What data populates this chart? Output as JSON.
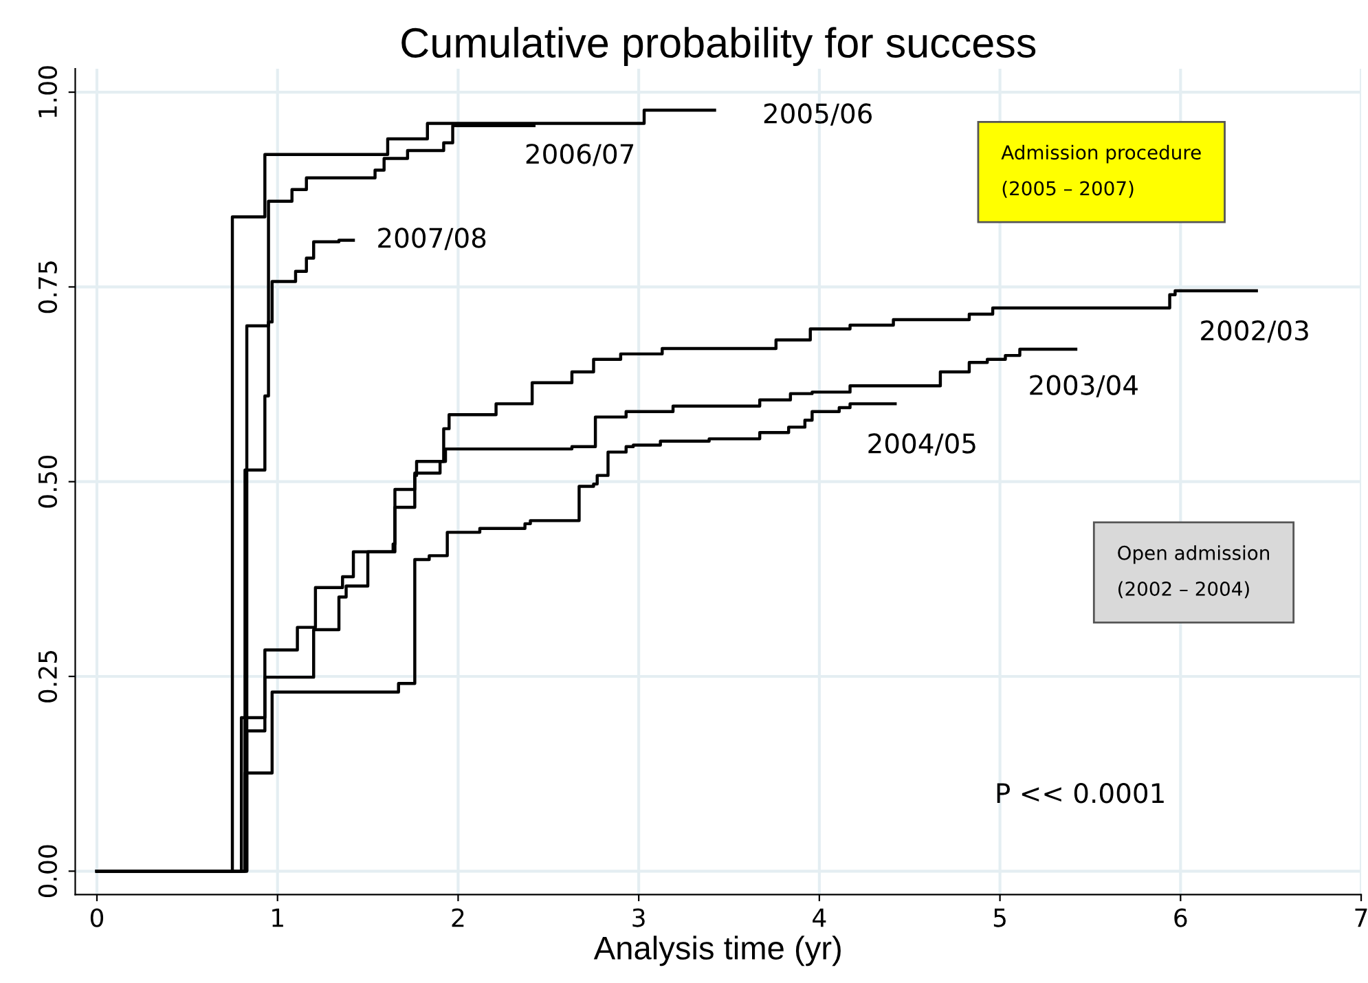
{
  "chart_data": {
    "type": "step",
    "title": "Cumulative probability for success",
    "xlabel": "Analysis time (yr)",
    "xlim": [
      -0.12,
      7
    ],
    "ylim": [
      -0.03,
      1.03
    ],
    "xticks": [
      0,
      1,
      2,
      3,
      4,
      5,
      6,
      7
    ],
    "yticks": [
      {
        "value": 0,
        "label": "0.00"
      },
      {
        "value": 0.25,
        "label": "0.25"
      },
      {
        "value": 0.5,
        "label": "0.50"
      },
      {
        "value": 0.75,
        "label": "0.75"
      },
      {
        "value": 1,
        "label": "1.00"
      }
    ],
    "grid": true,
    "legend": false,
    "line_style": "solid",
    "marker": "none",
    "series": [
      {
        "name": "2005/06",
        "color": "#000000",
        "x": [
          0,
          0.75,
          0.93,
          1.61,
          1.83,
          3.03,
          3.42
        ],
        "values": [
          0,
          0.84,
          0.92,
          0.94,
          0.96,
          0.977,
          0.977
        ]
      },
      {
        "name": "2006/07",
        "color": "#000000",
        "x": [
          0,
          0.83,
          0.95,
          1.08,
          1.16,
          1.54,
          1.59,
          1.72,
          1.92,
          1.97,
          2.42
        ],
        "values": [
          0,
          0.7,
          0.86,
          0.875,
          0.89,
          0.9,
          0.915,
          0.925,
          0.935,
          0.957,
          0.957
        ]
      },
      {
        "name": "2007/08",
        "color": "#000000",
        "x": [
          0,
          0.82,
          0.93,
          0.95,
          0.97,
          1.1,
          1.16,
          1.2,
          1.34,
          1.42
        ],
        "values": [
          0,
          0.515,
          0.61,
          0.705,
          0.757,
          0.77,
          0.787,
          0.808,
          0.81,
          0.81
        ]
      },
      {
        "name": "2002/03",
        "color": "#000000",
        "x": [
          0,
          0.83,
          0.93,
          1.11,
          1.21,
          1.36,
          1.42,
          1.64,
          1.65,
          1.76,
          1.77,
          1.92,
          1.95,
          2.21,
          2.41,
          2.63,
          2.75,
          2.9,
          3.13,
          3.76,
          3.95,
          4.17,
          4.41,
          4.83,
          4.96,
          5.94,
          5.97,
          6.42
        ],
        "values": [
          0,
          0.18,
          0.284,
          0.313,
          0.364,
          0.378,
          0.41,
          0.42,
          0.49,
          0.508,
          0.526,
          0.568,
          0.586,
          0.6,
          0.627,
          0.641,
          0.657,
          0.664,
          0.671,
          0.682,
          0.696,
          0.701,
          0.708,
          0.715,
          0.723,
          0.74,
          0.745,
          0.745
        ]
      },
      {
        "name": "2003/04",
        "color": "#000000",
        "x": [
          0,
          0.8,
          0.93,
          1.2,
          1.34,
          1.38,
          1.5,
          1.65,
          1.76,
          1.9,
          1.93,
          2.63,
          2.76,
          2.93,
          3.19,
          3.67,
          3.84,
          3.96,
          4.17,
          4.67,
          4.83,
          4.93,
          5.03,
          5.11,
          5.42
        ],
        "values": [
          0,
          0.197,
          0.249,
          0.31,
          0.352,
          0.366,
          0.41,
          0.467,
          0.511,
          0.526,
          0.542,
          0.545,
          0.583,
          0.59,
          0.597,
          0.605,
          0.613,
          0.615,
          0.623,
          0.641,
          0.653,
          0.657,
          0.662,
          0.67,
          0.67
        ]
      },
      {
        "name": "2004/05",
        "color": "#000000",
        "x": [
          0,
          0.82,
          0.97,
          1.67,
          1.76,
          1.84,
          1.94,
          2.12,
          2.37,
          2.4,
          2.67,
          2.75,
          2.77,
          2.83,
          2.93,
          2.97,
          3.12,
          3.39,
          3.67,
          3.83,
          3.92,
          3.96,
          4.11,
          4.17,
          4.42
        ],
        "values": [
          0,
          0.126,
          0.23,
          0.241,
          0.4,
          0.405,
          0.435,
          0.44,
          0.446,
          0.45,
          0.494,
          0.497,
          0.508,
          0.538,
          0.545,
          0.547,
          0.552,
          0.555,
          0.563,
          0.57,
          0.579,
          0.59,
          0.595,
          0.6,
          0.6
        ]
      }
    ],
    "annotations": [
      "Admission procedure\n(2005 – 2007)",
      "Open admission\n(2002 – 2004)",
      "P << 0.0001"
    ]
  }
}
